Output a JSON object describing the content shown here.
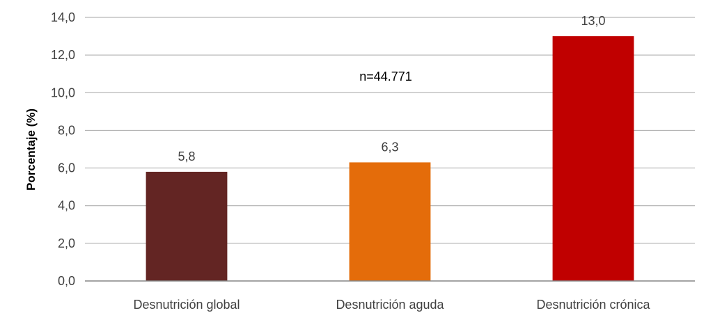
{
  "chart_data": {
    "type": "bar",
    "categories": [
      "Desnutrición global",
      "Desnutrición aguda",
      "Desnutrición crónica"
    ],
    "values": [
      5.8,
      6.3,
      13.0
    ],
    "value_labels": [
      "5,8",
      "6,3",
      "13,0"
    ],
    "colors": [
      "#632523",
      "#E46C0A",
      "#C00000"
    ],
    "ylabel": "Porcentaje (%)",
    "xlabel": "",
    "ylim": [
      0,
      14
    ],
    "yticks": [
      0,
      2,
      4,
      6,
      8,
      10,
      12,
      14
    ],
    "ytick_labels": [
      "0,0",
      "2,0",
      "4,0",
      "6,0",
      "8,0",
      "10,0",
      "12,0",
      "14,0"
    ],
    "annotation": "n=44.771",
    "grid": true,
    "grid_color": "#A6A6A6"
  }
}
